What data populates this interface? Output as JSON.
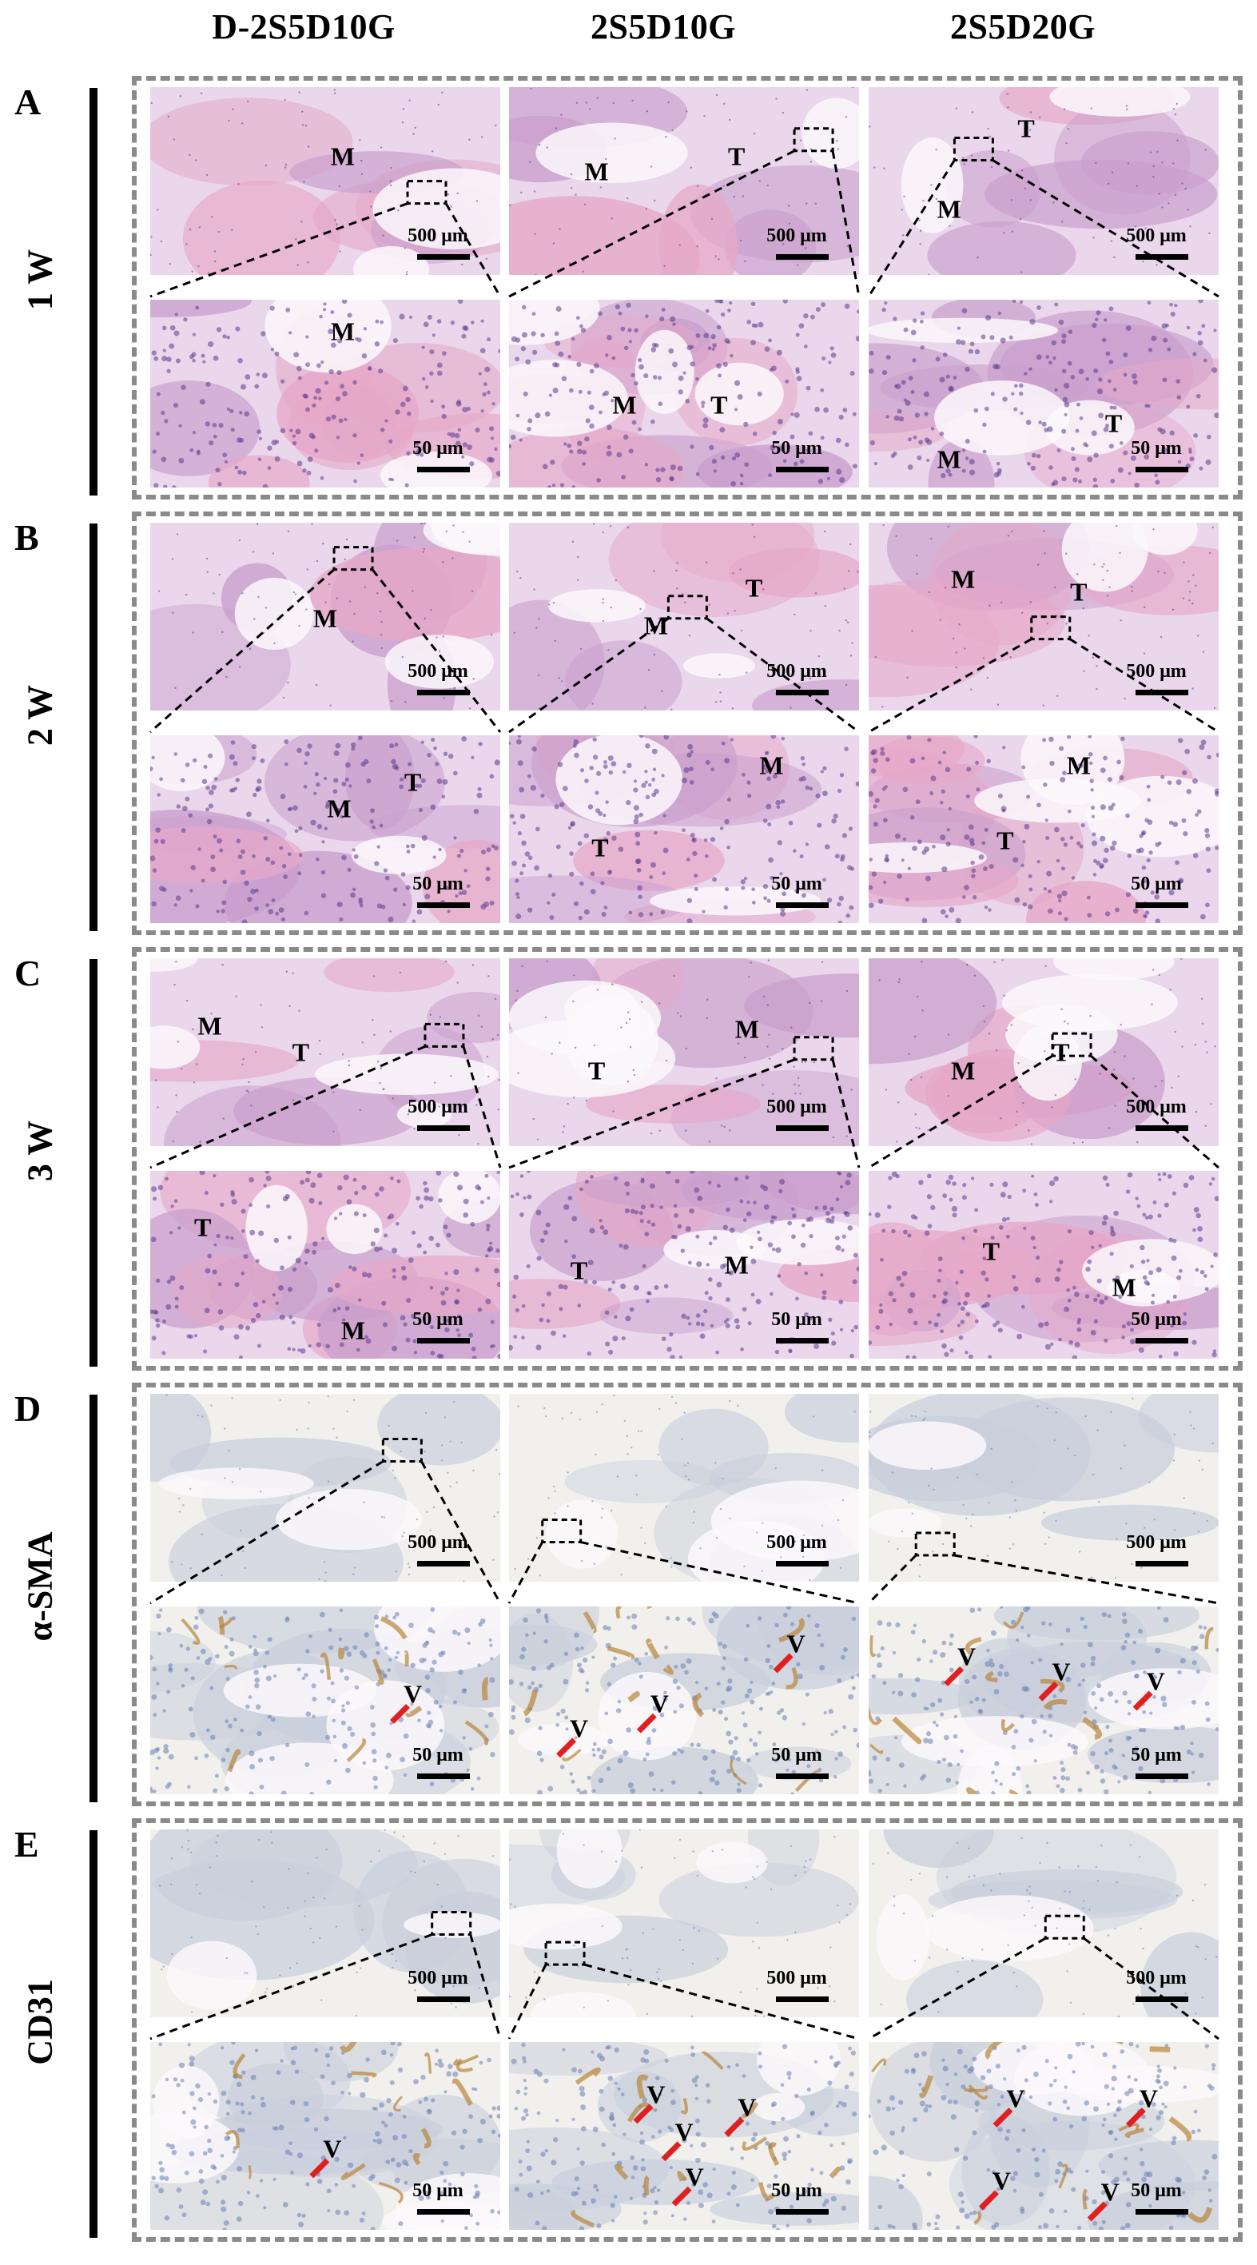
{
  "columns": [
    "D-2S5D10G",
    "2S5D10G",
    "2S5D20G"
  ],
  "rows": [
    {
      "letter": "A",
      "label": "1 W",
      "stain": "he"
    },
    {
      "letter": "B",
      "label": "2 W",
      "stain": "he"
    },
    {
      "letter": "C",
      "label": "3 W",
      "stain": "he"
    },
    {
      "letter": "D",
      "label": "α-SMA",
      "stain": "ihc"
    },
    {
      "letter": "E",
      "label": "CD31",
      "stain": "ihc"
    }
  ],
  "scale_low": "500 μm",
  "scale_high": "50 μm",
  "labels": {
    "A": {
      "low": [
        [
          "M"
        ],
        [
          "M",
          "T"
        ],
        [
          "T",
          "M"
        ]
      ],
      "high": [
        [
          "M"
        ],
        [
          "M",
          "T"
        ],
        [
          "T",
          "M"
        ]
      ]
    },
    "B": {
      "low": [
        [
          "M"
        ],
        [
          "T",
          "M"
        ],
        [
          "M",
          "T"
        ]
      ],
      "high": [
        [
          "M",
          "T"
        ],
        [
          "M",
          "T"
        ],
        [
          "M",
          "T"
        ]
      ]
    },
    "C": {
      "low": [
        [
          "M",
          "T"
        ],
        [
          "M",
          "T"
        ],
        [
          "M",
          "T"
        ]
      ],
      "high": [
        [
          "T",
          "M"
        ],
        [
          "T",
          "M"
        ],
        [
          "T",
          "M"
        ]
      ]
    },
    "D": {
      "low": [
        [],
        [],
        []
      ],
      "high": [
        [
          "V"
        ],
        [
          "V",
          "V",
          "V"
        ],
        [
          "V",
          "V",
          "V"
        ]
      ]
    },
    "E": {
      "low": [
        [],
        [],
        []
      ],
      "high": [
        [
          "V"
        ],
        [
          "V",
          "V",
          "V",
          "V"
        ],
        [
          "V",
          "V",
          "V",
          "V"
        ]
      ]
    }
  },
  "colors": {
    "he_bg": "#ead7ec",
    "he_tissue": "#c99fcc",
    "he_nuclei": "#5b3a8e",
    "he_pink": "#e6a8c8",
    "ihc_bg": "#f1f0ec",
    "ihc_tissue": "#c9cfdc",
    "ihc_brown": "#b8843a",
    "arrow": "#e02020",
    "frame": "#8a8a8a"
  }
}
